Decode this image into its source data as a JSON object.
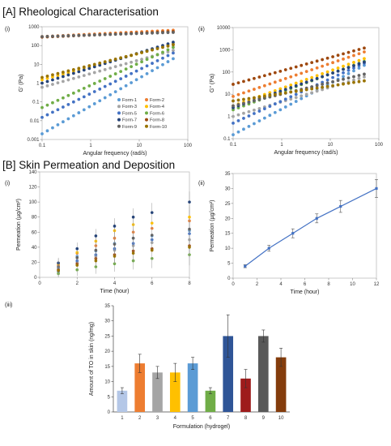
{
  "sections": {
    "A": "[A] Rheological Characterisation",
    "B": "[B] Skin Permeation and Deposition"
  },
  "panel_labels": {
    "i": "(i)",
    "ii": "(ii)",
    "iii": "(iii)"
  },
  "colors": {
    "Form-1": "#5b9bd5",
    "Form-2": "#ed7d31",
    "Form-3": "#a5a5a5",
    "Form-4": "#ffc000",
    "Form-5": "#4472c4",
    "Form-6": "#70ad47",
    "Form-7": "#264478",
    "Form-8": "#9e480e",
    "Form-9": "#636363",
    "Form-10": "#997300",
    "line": "#4472c4",
    "bars": [
      "#b4c7e7",
      "#ed7d31",
      "#a5a5a5",
      "#ffc000",
      "#5b9bd5",
      "#70ad47",
      "#2f5597",
      "#9e1b1b",
      "#595959",
      "#843c0c"
    ]
  },
  "chart_data": [
    {
      "id": "A-i",
      "type": "scatter",
      "xlabel": "Angular frequency (rad/s)",
      "ylabel": "G' (Pa)",
      "xscale": "log",
      "yscale": "log",
      "xlim": [
        0.1,
        100
      ],
      "ylim": [
        0.001,
        1000
      ],
      "xticks": [
        "0.1",
        "1",
        "10",
        "100"
      ],
      "yticks": [
        "0.001",
        "0.01",
        "0.1",
        "1",
        "10",
        "100",
        "1000"
      ],
      "legend": [
        "Form-1",
        "Form-2",
        "Form-3",
        "Form-4",
        "Form-5",
        "Form-6",
        "Form-7",
        "Form-8",
        "Form-9",
        "Form-10"
      ],
      "legend_position": "bottom-right",
      "series": [
        {
          "name": "Form-1",
          "start": 0.002,
          "end": 20
        },
        {
          "name": "Form-2",
          "start": 300,
          "end": 650
        },
        {
          "name": "Form-3",
          "start": 0.6,
          "end": 55
        },
        {
          "name": "Form-4",
          "start": 1.5,
          "end": 120
        },
        {
          "name": "Form-5",
          "start": 0.015,
          "end": 40
        },
        {
          "name": "Form-6",
          "start": 0.05,
          "end": 80
        },
        {
          "name": "Form-7",
          "start": 1,
          "end": 150
        },
        {
          "name": "Form-8",
          "start": 280,
          "end": 550
        },
        {
          "name": "Form-9",
          "start": 300,
          "end": 500
        },
        {
          "name": "Form-10",
          "start": 2,
          "end": 110
        }
      ]
    },
    {
      "id": "A-ii",
      "type": "scatter",
      "xlabel": "Angular frequency (rad/s)",
      "ylabel": "G'' (Pa)",
      "xscale": "log",
      "yscale": "log",
      "xlim": [
        0.1,
        100
      ],
      "ylim": [
        0.1,
        10000
      ],
      "xticks": [
        "0.1",
        "1",
        "10",
        "100"
      ],
      "yticks": [
        "0.1",
        "1",
        "10",
        "100",
        "1000",
        "10000"
      ],
      "series": [
        {
          "name": "Form-1",
          "start": 0.15,
          "end": 200
        },
        {
          "name": "Form-2",
          "start": 8,
          "end": 800
        },
        {
          "name": "Form-3",
          "start": 1,
          "end": 60
        },
        {
          "name": "Form-4",
          "start": 3,
          "end": 400
        },
        {
          "name": "Form-5",
          "start": 0.5,
          "end": 250
        },
        {
          "name": "Form-6",
          "start": 2,
          "end": 300
        },
        {
          "name": "Form-7",
          "start": 2.5,
          "end": 280
        },
        {
          "name": "Form-8",
          "start": 28,
          "end": 1200
        },
        {
          "name": "Form-9",
          "start": 3,
          "end": 80
        },
        {
          "name": "Form-10",
          "start": 5,
          "end": 40
        }
      ]
    },
    {
      "id": "B-i",
      "type": "scatter",
      "xlabel": "Time (hour)",
      "ylabel": "Permeation (µg/cm²)",
      "xlim": [
        0,
        8
      ],
      "ylim": [
        0,
        140
      ],
      "xticks": [
        "0",
        "2",
        "4",
        "6",
        "8"
      ],
      "yticks": [
        "0",
        "20",
        "40",
        "60",
        "80",
        "100",
        "120",
        "140"
      ],
      "x": [
        1,
        2,
        3,
        4,
        5,
        6,
        8
      ],
      "series": [
        {
          "name": "Form-1",
          "values": [
            12,
            28,
            35,
            45,
            52,
            55,
            62
          ]
        },
        {
          "name": "Form-2",
          "values": [
            16,
            32,
            42,
            52,
            60,
            65,
            75
          ]
        },
        {
          "name": "Form-3",
          "values": [
            10,
            20,
            28,
            36,
            42,
            46,
            50
          ]
        },
        {
          "name": "Form-4",
          "values": [
            18,
            33,
            48,
            62,
            70,
            72,
            80
          ]
        },
        {
          "name": "Form-5",
          "values": [
            8,
            22,
            30,
            38,
            45,
            50,
            58
          ]
        },
        {
          "name": "Form-6",
          "values": [
            5,
            10,
            14,
            18,
            22,
            25,
            30
          ]
        },
        {
          "name": "Form-7",
          "values": [
            19,
            38,
            55,
            68,
            80,
            86,
            100
          ]
        },
        {
          "name": "Form-8",
          "values": [
            10,
            18,
            25,
            30,
            35,
            38,
            42
          ]
        },
        {
          "name": "Form-9",
          "values": [
            14,
            26,
            36,
            44,
            52,
            56,
            64
          ]
        },
        {
          "name": "Form-10",
          "values": [
            9,
            16,
            22,
            28,
            32,
            36,
            40
          ]
        }
      ],
      "error": 14
    },
    {
      "id": "B-ii",
      "type": "line",
      "xlabel": "Time (hour)",
      "ylabel": "Permeation (µg/cm²)",
      "xlim": [
        0,
        12
      ],
      "ylim": [
        0,
        35
      ],
      "xticks": [
        "0",
        "2",
        "4",
        "6",
        "8",
        "10",
        "12"
      ],
      "yticks": [
        "0",
        "5",
        "10",
        "15",
        "20",
        "25",
        "30",
        "35"
      ],
      "x": [
        1,
        3,
        5,
        7,
        9,
        12
      ],
      "values": [
        4,
        10,
        15,
        20,
        24,
        30
      ],
      "errors": [
        0.5,
        1,
        1.5,
        1.5,
        2,
        3
      ]
    },
    {
      "id": "B-iii",
      "type": "bar",
      "xlabel": "Formulation (hydrogel)",
      "ylabel": "Amount of TO in skin (ng/mg)",
      "ylim": [
        0,
        35
      ],
      "yticks": [
        "0",
        "5",
        "10",
        "15",
        "20",
        "25",
        "30",
        "35"
      ],
      "categories": [
        "1",
        "2",
        "3",
        "4",
        "5",
        "6",
        "7",
        "8",
        "9",
        "10"
      ],
      "values": [
        7,
        16,
        13,
        13,
        16,
        7,
        25,
        11,
        25,
        18
      ],
      "errors": [
        1,
        3,
        2,
        3,
        2,
        1,
        7,
        3,
        2,
        3
      ]
    }
  ]
}
